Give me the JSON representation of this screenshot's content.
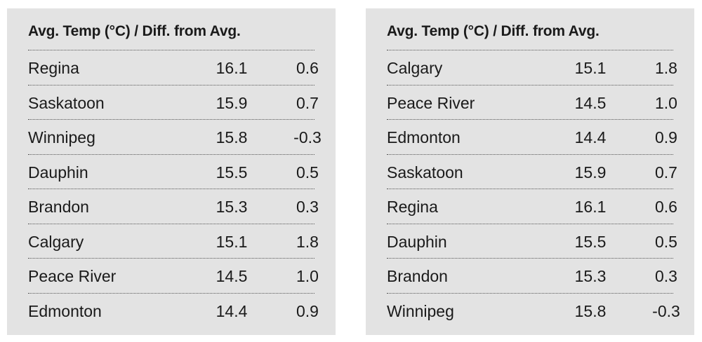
{
  "tables": [
    {
      "header": "Avg. Temp (°C)  / Diff. from Avg.",
      "rows": [
        {
          "city": "Regina",
          "temp": "16.1",
          "diff": "0.6"
        },
        {
          "city": "Saskatoon",
          "temp": "15.9",
          "diff": "0.7"
        },
        {
          "city": "Winnipeg",
          "temp": "15.8",
          "diff": "-0.3"
        },
        {
          "city": "Dauphin",
          "temp": "15.5",
          "diff": "0.5"
        },
        {
          "city": "Brandon",
          "temp": "15.3",
          "diff": "0.3"
        },
        {
          "city": "Calgary",
          "temp": "15.1",
          "diff": "1.8"
        },
        {
          "city": "Peace River",
          "temp": "14.5",
          "diff": "1.0"
        },
        {
          "city": "Edmonton",
          "temp": "14.4",
          "diff": "0.9"
        }
      ]
    },
    {
      "header": "Avg. Temp (°C)  / Diff. from Avg.",
      "rows": [
        {
          "city": "Calgary",
          "temp": "15.1",
          "diff": "1.8"
        },
        {
          "city": "Peace River",
          "temp": "14.5",
          "diff": "1.0"
        },
        {
          "city": "Edmonton",
          "temp": "14.4",
          "diff": "0.9"
        },
        {
          "city": "Saskatoon",
          "temp": "15.9",
          "diff": "0.7"
        },
        {
          "city": "Regina",
          "temp": "16.1",
          "diff": "0.6"
        },
        {
          "city": "Dauphin",
          "temp": "15.5",
          "diff": "0.5"
        },
        {
          "city": "Brandon",
          "temp": "15.3",
          "diff": "0.3"
        },
        {
          "city": "Winnipeg",
          "temp": "15.8",
          "diff": "-0.3"
        }
      ]
    }
  ]
}
